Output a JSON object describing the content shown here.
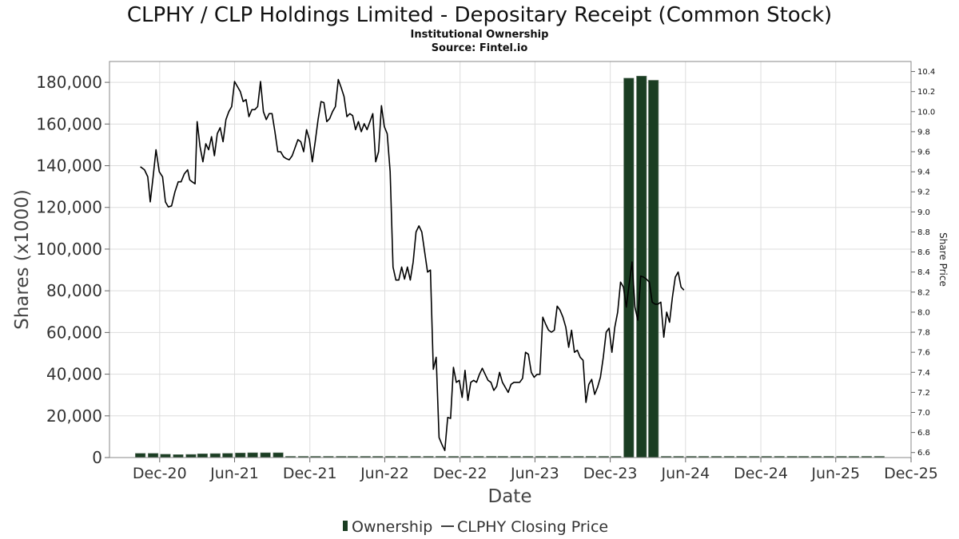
{
  "chart_data": {
    "type": "bar+line",
    "title": "CLPHY / CLP Holdings Limited - Depositary Receipt (Common Stock)",
    "subtitle": "Institutional Ownership",
    "source": "Source: Fintel.io",
    "xlabel": "Date",
    "ylabel": "Shares (x1000)",
    "y2label": "Share Price",
    "ylim": [
      0,
      190000
    ],
    "y2lim": [
      6.55,
      10.5
    ],
    "xlim": [
      "2020-08-01",
      "2025-12-01"
    ],
    "x_ticks": [
      {
        "date": "2020-12-01",
        "label": "Dec-20"
      },
      {
        "date": "2021-06-01",
        "label": "Jun-21"
      },
      {
        "date": "2021-12-01",
        "label": "Dec-21"
      },
      {
        "date": "2022-06-01",
        "label": "Jun-22"
      },
      {
        "date": "2022-12-01",
        "label": "Dec-22"
      },
      {
        "date": "2023-06-01",
        "label": "Jun-23"
      },
      {
        "date": "2023-12-01",
        "label": "Dec-23"
      },
      {
        "date": "2024-06-01",
        "label": "Jun-24"
      },
      {
        "date": "2024-12-01",
        "label": "Dec-24"
      },
      {
        "date": "2025-06-01",
        "label": "Jun-25"
      },
      {
        "date": "2025-12-01",
        "label": "Dec-25"
      }
    ],
    "y_ticks": [
      {
        "value": 0,
        "label": "0"
      },
      {
        "value": 20000,
        "label": "20,000"
      },
      {
        "value": 40000,
        "label": "40,000"
      },
      {
        "value": 60000,
        "label": "60,000"
      },
      {
        "value": 80000,
        "label": "80,000"
      },
      {
        "value": 100000,
        "label": "100,000"
      },
      {
        "value": 120000,
        "label": "120,000"
      },
      {
        "value": 140000,
        "label": "140,000"
      },
      {
        "value": 160000,
        "label": "160,000"
      },
      {
        "value": 180000,
        "label": "180,000"
      }
    ],
    "y2_ticks": [
      {
        "value": 6.6,
        "label": "6.6"
      },
      {
        "value": 6.8,
        "label": "6.8"
      },
      {
        "value": 7.0,
        "label": "7.0"
      },
      {
        "value": 7.2,
        "label": "7.2"
      },
      {
        "value": 7.4,
        "label": "7.4"
      },
      {
        "value": 7.6,
        "label": "7.6"
      },
      {
        "value": 7.8,
        "label": "7.8"
      },
      {
        "value": 8.0,
        "label": "8.0"
      },
      {
        "value": 8.2,
        "label": "8.2"
      },
      {
        "value": 8.4,
        "label": "8.4"
      },
      {
        "value": 8.6,
        "label": "8.6"
      },
      {
        "value": 8.8,
        "label": "8.8"
      },
      {
        "value": 9.0,
        "label": "9.0"
      },
      {
        "value": 9.2,
        "label": "9.2"
      },
      {
        "value": 9.4,
        "label": "9.4"
      },
      {
        "value": 9.6,
        "label": "9.6"
      },
      {
        "value": 9.8,
        "label": "9.8"
      },
      {
        "value": 10.0,
        "label": "10.0"
      },
      {
        "value": 10.2,
        "label": "10.2"
      },
      {
        "value": 10.4,
        "label": "10.4"
      }
    ],
    "bar_color": "#1a3d22",
    "line_color": "#000000",
    "grid": true,
    "legend_position": "bottom",
    "series": [
      {
        "name": "Ownership",
        "type": "bar",
        "x": [
          "2020-10-15",
          "2020-11-15",
          "2020-12-15",
          "2021-01-15",
          "2021-02-15",
          "2021-03-15",
          "2021-04-15",
          "2021-05-15",
          "2021-06-15",
          "2021-07-15",
          "2021-08-15",
          "2021-09-15",
          "2021-10-15",
          "2021-11-15",
          "2021-12-15",
          "2022-01-15",
          "2022-02-15",
          "2022-03-15",
          "2022-04-15",
          "2022-05-15",
          "2022-06-15",
          "2022-07-15",
          "2022-08-15",
          "2022-09-15",
          "2022-10-15",
          "2022-11-15",
          "2022-12-15",
          "2023-01-15",
          "2023-02-15",
          "2023-03-15",
          "2023-04-15",
          "2023-05-15",
          "2023-06-15",
          "2023-07-15",
          "2023-08-15",
          "2023-09-15",
          "2023-10-15",
          "2023-11-15",
          "2023-12-15",
          "2024-01-15",
          "2024-02-15",
          "2024-03-15",
          "2024-04-15",
          "2024-05-15",
          "2024-06-15",
          "2024-07-15",
          "2024-08-15",
          "2024-09-15",
          "2024-10-15",
          "2024-11-15",
          "2024-12-15",
          "2025-01-15",
          "2025-02-15",
          "2025-03-15",
          "2025-04-15",
          "2025-05-15",
          "2025-06-15",
          "2025-07-15",
          "2025-08-15",
          "2025-09-15"
        ],
        "values": [
          2000,
          2000,
          1600,
          1400,
          1500,
          1800,
          1900,
          2000,
          2200,
          2300,
          2300,
          2300,
          500,
          500,
          500,
          500,
          500,
          500,
          500,
          500,
          500,
          500,
          500,
          500,
          500,
          500,
          500,
          500,
          500,
          500,
          500,
          500,
          500,
          500,
          500,
          500,
          500,
          500,
          500,
          182000,
          183000,
          181000,
          500,
          500,
          500,
          500,
          500,
          500,
          500,
          500,
          500,
          500,
          500,
          500,
          500,
          500,
          500,
          500,
          500,
          500
        ]
      },
      {
        "name": "CLPHY Closing Price",
        "type": "line",
        "x": [
          "2020-10-15",
          "2020-10-25",
          "2020-11-02",
          "2020-11-08",
          "2020-11-15",
          "2020-11-22",
          "2020-11-30",
          "2020-12-08",
          "2020-12-15",
          "2020-12-22",
          "2020-12-30",
          "2021-01-07",
          "2021-01-15",
          "2021-01-22",
          "2021-01-30",
          "2021-02-07",
          "2021-02-12",
          "2021-02-18",
          "2021-02-25",
          "2021-03-02",
          "2021-03-09",
          "2021-03-16",
          "2021-03-23",
          "2021-03-30",
          "2021-04-06",
          "2021-04-13",
          "2021-04-20",
          "2021-04-27",
          "2021-05-04",
          "2021-05-11",
          "2021-05-18",
          "2021-05-25",
          "2021-06-01",
          "2021-06-08",
          "2021-06-15",
          "2021-06-22",
          "2021-06-29",
          "2021-07-06",
          "2021-07-13",
          "2021-07-20",
          "2021-07-27",
          "2021-08-03",
          "2021-08-10",
          "2021-08-17",
          "2021-08-24",
          "2021-08-31",
          "2021-09-07",
          "2021-09-14",
          "2021-09-21",
          "2021-09-28",
          "2021-10-05",
          "2021-10-12",
          "2021-10-19",
          "2021-10-26",
          "2021-11-02",
          "2021-11-09",
          "2021-11-16",
          "2021-11-23",
          "2021-11-30",
          "2021-12-07",
          "2021-12-14",
          "2021-12-21",
          "2021-12-28",
          "2022-01-04",
          "2022-01-11",
          "2022-01-18",
          "2022-01-25",
          "2022-02-01",
          "2022-02-08",
          "2022-02-15",
          "2022-02-22",
          "2022-03-01",
          "2022-03-08",
          "2022-03-15",
          "2022-03-22",
          "2022-03-29",
          "2022-04-05",
          "2022-04-12",
          "2022-04-19",
          "2022-04-26",
          "2022-05-03",
          "2022-05-10",
          "2022-05-17",
          "2022-05-24",
          "2022-05-31",
          "2022-06-07",
          "2022-06-14",
          "2022-06-21",
          "2022-06-28",
          "2022-07-05",
          "2022-07-12",
          "2022-07-19",
          "2022-07-26",
          "2022-08-02",
          "2022-08-09",
          "2022-08-16",
          "2022-08-23",
          "2022-08-30",
          "2022-09-06",
          "2022-09-13",
          "2022-09-20",
          "2022-09-27",
          "2022-10-04",
          "2022-10-11",
          "2022-10-18",
          "2022-10-25",
          "2022-11-01",
          "2022-11-08",
          "2022-11-15",
          "2022-11-22",
          "2022-11-29",
          "2022-12-06",
          "2022-12-13",
          "2022-12-20",
          "2022-12-27",
          "2023-01-03",
          "2023-01-10",
          "2023-01-17",
          "2023-01-24",
          "2023-01-31",
          "2023-02-07",
          "2023-02-14",
          "2023-02-21",
          "2023-02-28",
          "2023-03-07",
          "2023-03-14",
          "2023-03-21",
          "2023-03-28",
          "2023-04-04",
          "2023-04-11",
          "2023-04-18",
          "2023-04-25",
          "2023-05-02",
          "2023-05-09",
          "2023-05-16",
          "2023-05-23",
          "2023-05-30",
          "2023-06-06",
          "2023-06-13",
          "2023-06-20",
          "2023-06-27",
          "2023-07-04",
          "2023-07-11",
          "2023-07-18",
          "2023-07-25",
          "2023-08-01",
          "2023-08-08",
          "2023-08-15",
          "2023-08-22",
          "2023-08-29",
          "2023-09-05",
          "2023-09-12",
          "2023-09-19",
          "2023-09-26",
          "2023-10-03",
          "2023-10-10",
          "2023-10-17",
          "2023-10-24",
          "2023-10-31",
          "2023-11-07",
          "2023-11-14",
          "2023-11-21",
          "2023-11-28",
          "2023-12-05",
          "2023-12-12",
          "2023-12-19",
          "2023-12-26",
          "2024-01-02",
          "2024-01-09",
          "2024-01-16",
          "2024-01-23",
          "2024-01-30",
          "2024-02-06",
          "2024-02-13",
          "2024-02-20",
          "2024-02-27",
          "2024-03-05",
          "2024-03-12",
          "2024-03-19",
          "2024-03-26",
          "2024-04-02",
          "2024-04-09",
          "2024-04-16",
          "2024-04-23",
          "2024-04-30",
          "2024-05-07",
          "2024-05-14",
          "2024-05-21",
          "2024-05-28"
        ],
        "values": [
          9.45,
          9.42,
          9.35,
          9.1,
          9.35,
          9.62,
          9.4,
          9.35,
          9.1,
          9.05,
          9.06,
          9.2,
          9.3,
          9.3,
          9.38,
          9.42,
          9.32,
          9.3,
          9.28,
          9.9,
          9.65,
          9.5,
          9.68,
          9.62,
          9.75,
          9.56,
          9.78,
          9.84,
          9.7,
          9.92,
          10.0,
          10.05,
          10.3,
          10.25,
          10.2,
          10.1,
          10.12,
          9.95,
          10.02,
          10.02,
          10.05,
          10.3,
          10.0,
          9.92,
          9.98,
          9.98,
          9.8,
          9.6,
          9.6,
          9.55,
          9.53,
          9.52,
          9.56,
          9.64,
          9.72,
          9.7,
          9.6,
          9.82,
          9.72,
          9.5,
          9.7,
          9.92,
          10.1,
          10.09,
          9.9,
          9.93,
          10.0,
          10.05,
          10.32,
          10.24,
          10.15,
          9.95,
          9.98,
          9.96,
          9.82,
          9.9,
          9.8,
          9.88,
          9.82,
          9.9,
          9.98,
          9.5,
          9.6,
          10.06,
          9.85,
          9.78,
          9.4,
          8.45,
          8.32,
          8.32,
          8.45,
          8.33,
          8.45,
          8.32,
          8.5,
          8.8,
          8.86,
          8.8,
          8.6,
          8.4,
          8.42,
          7.43,
          7.55,
          6.75,
          6.68,
          6.62,
          6.95,
          6.94,
          7.45,
          7.3,
          7.32,
          7.15,
          7.42,
          7.12,
          7.3,
          7.32,
          7.3,
          7.38,
          7.44,
          7.38,
          7.32,
          7.3,
          7.22,
          7.26,
          7.4,
          7.3,
          7.25,
          7.2,
          7.28,
          7.3,
          7.3,
          7.3,
          7.34,
          7.6,
          7.58,
          7.4,
          7.35,
          7.38,
          7.38,
          7.95,
          7.88,
          7.82,
          7.8,
          7.82,
          8.06,
          8.02,
          7.95,
          7.85,
          7.65,
          7.82,
          7.6,
          7.62,
          7.55,
          7.52,
          7.1,
          7.28,
          7.33,
          7.18,
          7.25,
          7.35,
          7.55,
          7.8,
          7.84,
          7.6,
          7.85,
          8.0,
          8.3,
          8.25,
          8.05,
          8.28,
          8.5,
          8.05,
          7.92,
          8.36,
          8.35,
          8.33,
          8.3,
          8.1,
          8.08,
          8.08,
          8.1,
          7.75,
          8.0,
          7.9,
          8.15,
          8.35,
          8.4,
          8.25,
          8.22
        ]
      }
    ]
  },
  "legend": {
    "ownership_label": "Ownership",
    "price_label": "CLPHY Closing Price"
  }
}
